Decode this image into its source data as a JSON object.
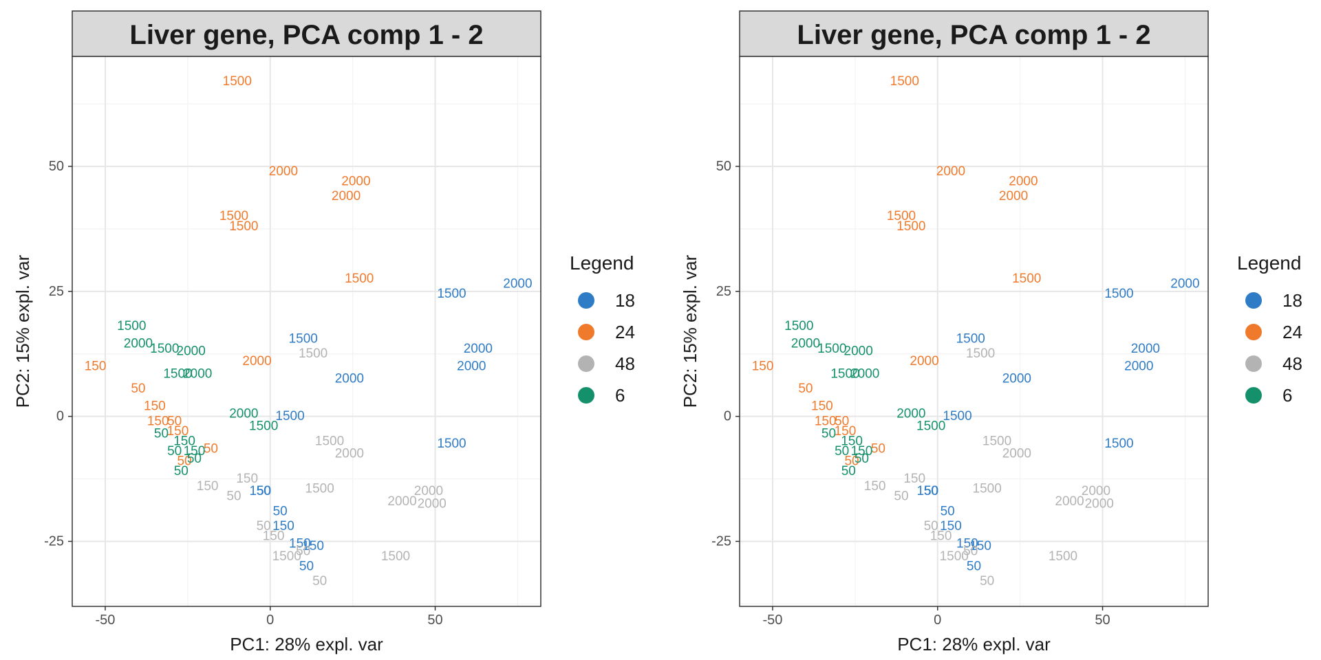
{
  "chart_data": [
    {
      "type": "scatter",
      "title": "Liver gene, PCA comp 1 - 2",
      "xlabel": "PC1: 28% expl. var",
      "ylabel": "PC2: 15% expl. var",
      "xlim": [
        -60,
        82
      ],
      "ylim": [
        -38,
        72
      ],
      "xticks": [
        -50,
        0,
        50
      ],
      "yticks": [
        -25,
        0,
        25,
        50
      ],
      "grid": true,
      "point_labels": true,
      "legend": {
        "title": "Legend",
        "position": "right",
        "entries": [
          {
            "label": "18",
            "color": "#2e7bc6"
          },
          {
            "label": "24",
            "color": "#f07a2c"
          },
          {
            "label": "48",
            "color": "#b3b3b3"
          },
          {
            "label": "6",
            "color": "#14906a"
          }
        ]
      },
      "series": [
        {
          "group": "18",
          "color": "#2e7bc6",
          "points": [
            {
              "x": 55,
              "y": 24.5,
              "label": "1500"
            },
            {
              "x": 75,
              "y": 26.5,
              "label": "2000"
            },
            {
              "x": 63,
              "y": 13.5,
              "label": "2000"
            },
            {
              "x": 61,
              "y": 10,
              "label": "2000"
            },
            {
              "x": 10,
              "y": 15.5,
              "label": "1500"
            },
            {
              "x": 24,
              "y": 7.5,
              "label": "2000"
            },
            {
              "x": 6,
              "y": 0,
              "label": "1500"
            },
            {
              "x": 55,
              "y": -5.5,
              "label": "1500"
            },
            {
              "x": -3,
              "y": -15,
              "label": "150"
            },
            {
              "x": -2,
              "y": -15,
              "label": "50"
            },
            {
              "x": 3,
              "y": -19,
              "label": "50"
            },
            {
              "x": 4,
              "y": -22,
              "label": "150"
            },
            {
              "x": 9,
              "y": -25.5,
              "label": "150"
            },
            {
              "x": 13,
              "y": -26,
              "label": "150"
            },
            {
              "x": 11,
              "y": -30,
              "label": "50"
            }
          ]
        },
        {
          "group": "24",
          "color": "#f07a2c",
          "points": [
            {
              "x": -10,
              "y": 67,
              "label": "1500"
            },
            {
              "x": 4,
              "y": 49,
              "label": "2000"
            },
            {
              "x": 26,
              "y": 47,
              "label": "2000"
            },
            {
              "x": 23,
              "y": 44,
              "label": "2000"
            },
            {
              "x": -11,
              "y": 40,
              "label": "1500"
            },
            {
              "x": -8,
              "y": 38,
              "label": "1500"
            },
            {
              "x": 27,
              "y": 27.5,
              "label": "1500"
            },
            {
              "x": -4,
              "y": 11,
              "label": "2000"
            },
            {
              "x": -53,
              "y": 10,
              "label": "150"
            },
            {
              "x": -40,
              "y": 5.5,
              "label": "50"
            },
            {
              "x": -35,
              "y": 2,
              "label": "150"
            },
            {
              "x": -34,
              "y": -1,
              "label": "150"
            },
            {
              "x": -29,
              "y": -1,
              "label": "50"
            },
            {
              "x": -28,
              "y": -3,
              "label": "150"
            },
            {
              "x": -18,
              "y": -6.5,
              "label": "50"
            },
            {
              "x": -26,
              "y": -9,
              "label": "50"
            }
          ]
        },
        {
          "group": "48",
          "color": "#b3b3b3",
          "points": [
            {
              "x": 13,
              "y": 12.5,
              "label": "1500"
            },
            {
              "x": 18,
              "y": -5,
              "label": "1500"
            },
            {
              "x": 24,
              "y": -7.5,
              "label": "2000"
            },
            {
              "x": -7,
              "y": -12.5,
              "label": "150"
            },
            {
              "x": -19,
              "y": -14,
              "label": "150"
            },
            {
              "x": -11,
              "y": -16,
              "label": "50"
            },
            {
              "x": 15,
              "y": -14.5,
              "label": "1500"
            },
            {
              "x": 48,
              "y": -15,
              "label": "2000"
            },
            {
              "x": 40,
              "y": -17,
              "label": "2000"
            },
            {
              "x": 49,
              "y": -17.5,
              "label": "2000"
            },
            {
              "x": -2,
              "y": -22,
              "label": "50"
            },
            {
              "x": 1,
              "y": -24,
              "label": "150"
            },
            {
              "x": 5,
              "y": -28,
              "label": "1500"
            },
            {
              "x": 10,
              "y": -27,
              "label": "50"
            },
            {
              "x": 38,
              "y": -28,
              "label": "1500"
            },
            {
              "x": 15,
              "y": -33,
              "label": "50"
            }
          ]
        },
        {
          "group": "6",
          "color": "#14906a",
          "points": [
            {
              "x": -42,
              "y": 18,
              "label": "1500"
            },
            {
              "x": -40,
              "y": 14.5,
              "label": "2000"
            },
            {
              "x": -32,
              "y": 13.5,
              "label": "1500"
            },
            {
              "x": -24,
              "y": 13,
              "label": "2000"
            },
            {
              "x": -28,
              "y": 8.5,
              "label": "1500"
            },
            {
              "x": -22,
              "y": 8.5,
              "label": "2000"
            },
            {
              "x": -8,
              "y": 0.5,
              "label": "2000"
            },
            {
              "x": -2,
              "y": -2,
              "label": "1500"
            },
            {
              "x": -33,
              "y": -3.5,
              "label": "50"
            },
            {
              "x": -26,
              "y": -5,
              "label": "150"
            },
            {
              "x": -29,
              "y": -7,
              "label": "50"
            },
            {
              "x": -23,
              "y": -7,
              "label": "150"
            },
            {
              "x": -23,
              "y": -8.5,
              "label": "50"
            },
            {
              "x": -27,
              "y": -11,
              "label": "50"
            }
          ]
        }
      ]
    },
    {
      "type": "scatter",
      "title": "Liver gene, PCA comp 1 - 2",
      "xlabel": "PC1: 28% expl. var",
      "ylabel": "PC2: 15% expl. var",
      "xlim": [
        -60,
        82
      ],
      "ylim": [
        -38,
        72
      ],
      "xticks": [
        -50,
        0,
        50
      ],
      "yticks": [
        -25,
        0,
        25,
        50
      ],
      "grid": true,
      "point_labels": true,
      "legend": {
        "title": "Legend",
        "position": "right",
        "entries": [
          {
            "label": "18",
            "color": "#2e7bc6"
          },
          {
            "label": "24",
            "color": "#f07a2c"
          },
          {
            "label": "48",
            "color": "#b3b3b3"
          },
          {
            "label": "6",
            "color": "#14906a"
          }
        ]
      },
      "series": [
        {
          "group": "18",
          "color": "#2e7bc6",
          "points": [
            {
              "x": 55,
              "y": 24.5,
              "label": "1500"
            },
            {
              "x": 75,
              "y": 26.5,
              "label": "2000"
            },
            {
              "x": 63,
              "y": 13.5,
              "label": "2000"
            },
            {
              "x": 61,
              "y": 10,
              "label": "2000"
            },
            {
              "x": 10,
              "y": 15.5,
              "label": "1500"
            },
            {
              "x": 24,
              "y": 7.5,
              "label": "2000"
            },
            {
              "x": 6,
              "y": 0,
              "label": "1500"
            },
            {
              "x": 55,
              "y": -5.5,
              "label": "1500"
            },
            {
              "x": -3,
              "y": -15,
              "label": "150"
            },
            {
              "x": -2,
              "y": -15,
              "label": "50"
            },
            {
              "x": 3,
              "y": -19,
              "label": "50"
            },
            {
              "x": 4,
              "y": -22,
              "label": "150"
            },
            {
              "x": 9,
              "y": -25.5,
              "label": "150"
            },
            {
              "x": 13,
              "y": -26,
              "label": "150"
            },
            {
              "x": 11,
              "y": -30,
              "label": "50"
            }
          ]
        },
        {
          "group": "24",
          "color": "#f07a2c",
          "points": [
            {
              "x": -10,
              "y": 67,
              "label": "1500"
            },
            {
              "x": 4,
              "y": 49,
              "label": "2000"
            },
            {
              "x": 26,
              "y": 47,
              "label": "2000"
            },
            {
              "x": 23,
              "y": 44,
              "label": "2000"
            },
            {
              "x": -11,
              "y": 40,
              "label": "1500"
            },
            {
              "x": -8,
              "y": 38,
              "label": "1500"
            },
            {
              "x": 27,
              "y": 27.5,
              "label": "1500"
            },
            {
              "x": -4,
              "y": 11,
              "label": "2000"
            },
            {
              "x": -53,
              "y": 10,
              "label": "150"
            },
            {
              "x": -40,
              "y": 5.5,
              "label": "50"
            },
            {
              "x": -35,
              "y": 2,
              "label": "150"
            },
            {
              "x": -34,
              "y": -1,
              "label": "150"
            },
            {
              "x": -29,
              "y": -1,
              "label": "50"
            },
            {
              "x": -28,
              "y": -3,
              "label": "150"
            },
            {
              "x": -18,
              "y": -6.5,
              "label": "50"
            },
            {
              "x": -26,
              "y": -9,
              "label": "50"
            }
          ]
        },
        {
          "group": "48",
          "color": "#b3b3b3",
          "points": [
            {
              "x": 13,
              "y": 12.5,
              "label": "1500"
            },
            {
              "x": 18,
              "y": -5,
              "label": "1500"
            },
            {
              "x": 24,
              "y": -7.5,
              "label": "2000"
            },
            {
              "x": -7,
              "y": -12.5,
              "label": "150"
            },
            {
              "x": -19,
              "y": -14,
              "label": "150"
            },
            {
              "x": -11,
              "y": -16,
              "label": "50"
            },
            {
              "x": 15,
              "y": -14.5,
              "label": "1500"
            },
            {
              "x": 48,
              "y": -15,
              "label": "2000"
            },
            {
              "x": 40,
              "y": -17,
              "label": "2000"
            },
            {
              "x": 49,
              "y": -17.5,
              "label": "2000"
            },
            {
              "x": -2,
              "y": -22,
              "label": "50"
            },
            {
              "x": 1,
              "y": -24,
              "label": "150"
            },
            {
              "x": 5,
              "y": -28,
              "label": "1500"
            },
            {
              "x": 10,
              "y": -27,
              "label": "50"
            },
            {
              "x": 38,
              "y": -28,
              "label": "1500"
            },
            {
              "x": 15,
              "y": -33,
              "label": "50"
            }
          ]
        },
        {
          "group": "6",
          "color": "#14906a",
          "points": [
            {
              "x": -42,
              "y": 18,
              "label": "1500"
            },
            {
              "x": -40,
              "y": 14.5,
              "label": "2000"
            },
            {
              "x": -32,
              "y": 13.5,
              "label": "1500"
            },
            {
              "x": -24,
              "y": 13,
              "label": "2000"
            },
            {
              "x": -28,
              "y": 8.5,
              "label": "1500"
            },
            {
              "x": -22,
              "y": 8.5,
              "label": "2000"
            },
            {
              "x": -8,
              "y": 0.5,
              "label": "2000"
            },
            {
              "x": -2,
              "y": -2,
              "label": "1500"
            },
            {
              "x": -33,
              "y": -3.5,
              "label": "50"
            },
            {
              "x": -26,
              "y": -5,
              "label": "150"
            },
            {
              "x": -29,
              "y": -7,
              "label": "50"
            },
            {
              "x": -23,
              "y": -7,
              "label": "150"
            },
            {
              "x": -23,
              "y": -8.5,
              "label": "50"
            },
            {
              "x": -27,
              "y": -11,
              "label": "50"
            }
          ]
        }
      ]
    }
  ]
}
